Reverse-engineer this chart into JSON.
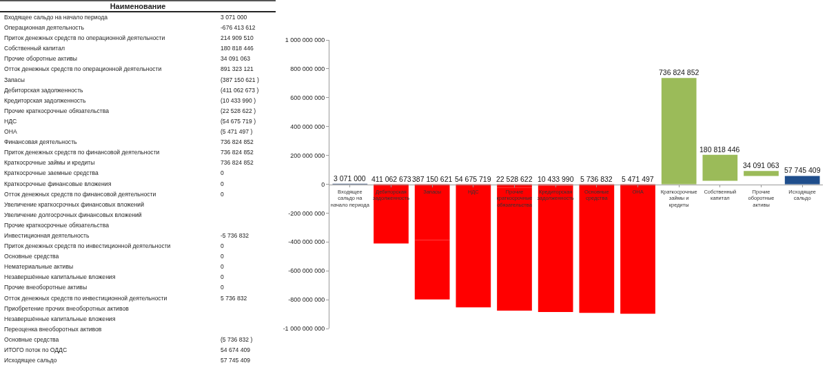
{
  "chart_data": [
    {
      "type": "other",
      "title": "Наименование",
      "categories": [
        "Входящее сальдо на начало периода",
        "Операционная деятельность",
        "Приток денежных средств по операционной деятельности",
        "Собственный капитал",
        "Прочие оборотные активы",
        "Отток денежных средств по операционной деятельности",
        "Запасы",
        "Дебиторская задолженность",
        "Кредиторская задолженность",
        "Прочие краткосрочные обязательства",
        "НДС",
        "ОНА",
        "Финансовая деятельность",
        "Приток денежных средств по финансовой деятельности",
        "Краткосрочные займы и кредиты",
        "Краткосрочные заемные средства",
        "Краткосрочные финансовые вложения",
        "Отток денежных средств по финансовой деятельности",
        "Увеличение краткосрочных финансовых вложений",
        "Увеличение долгосрочных финансовых вложений",
        "Прочие краткосрочные обязательства",
        "Инвестиционная деятельность",
        "Приток денежных средств по инвестиционной деятельности",
        "Основные средства",
        "Нематериальные активы",
        "Незавершённые капитальные вложения",
        "Прочие внеоборотные активы",
        "Отток денежных средств по инвестиционной деятельности",
        "Приобретение прочих внеоборотных активов",
        "Незавершённые капитальные вложения",
        "Переоценка внеоборотных активов",
        "Основные средства",
        "ИТОГО поток по ОДДС",
        "Исходящее сальдо"
      ],
      "value_labels": [
        "3 071 000",
        "-676 413 612",
        "214 909 510",
        "180 818 446",
        "34 091 063",
        "891 323 121",
        "(387 150 621 )",
        "(411 062 673 )",
        "(10 433 990 )",
        "(22 528 622 )",
        "(54 675 719 )",
        "(5 471 497 )",
        "736 824 852",
        "736 824 852",
        "736 824 852",
        "0",
        "0",
        "0",
        null,
        null,
        null,
        "-5 736 832",
        "0",
        "0",
        "0",
        "0",
        "0",
        "5 736 832",
        null,
        null,
        null,
        "(5 736 832 )",
        "54 674 409",
        "57 745 409"
      ]
    },
    {
      "type": "bar",
      "categories": [
        "Входящее сальдо на начало периода",
        "Дебиторская задолженность",
        "Запасы",
        "НДС",
        "Прочие краткосрочные обязательства",
        "Кредиторская задолженность",
        "Основные средства",
        "ОНА",
        "Краткосрочные займы и кредиты",
        "Собственный капитал",
        "Прочие оборотные активы",
        "Исходящее сальдо"
      ],
      "series": [
        {
          "color": "#ff0000",
          "values": [
            null,
            null,
            -411062673,
            -798213294,
            -852889013,
            -875417635,
            -885851625,
            -891588457,
            null,
            null,
            null,
            null
          ],
          "base": [
            null,
            null,
            -387150621,
            -54675719,
            -22528622,
            -10433990,
            -5736832,
            -5471497,
            null,
            null,
            null,
            null
          ]
        },
        {
          "colors": [
            "#1f3864",
            "#ff0000",
            "#ff0000",
            "#ff0000",
            "#ff0000",
            "#ff0000",
            "#ff0000",
            "#ff0000",
            "#9bbb59",
            "#9bbb59",
            "#9bbb59",
            "#1f4e8c"
          ],
          "values": [
            3071000,
            -411062673,
            -387150621,
            -54675719,
            -22528622,
            -10433990,
            -5736832,
            -5471497,
            736824852,
            180818446,
            34091063,
            57745409
          ],
          "base": [
            0,
            0,
            0,
            0,
            0,
            0,
            0,
            0,
            0,
            23654346,
            57745409,
            0
          ],
          "value_labels": [
            "3 071 000",
            "411 062 673",
            "387 150 621",
            "54 675 719",
            "22 528 622",
            "10 433 990",
            "5 736 832",
            "5 471 497",
            "736 824 852",
            "180 818 446",
            "34 091 063",
            "57 745 409"
          ]
        }
      ],
      "ylim": [
        -1000000000,
        1000000000
      ],
      "yticks": [
        {
          "value": 1000000000,
          "label": "1 000 000 000"
        },
        {
          "value": 800000000,
          "label": "800 000 000"
        },
        {
          "value": 600000000,
          "label": "600 000 000"
        },
        {
          "value": 400000000,
          "label": "400 000 000"
        },
        {
          "value": 200000000,
          "label": "200 000 000"
        },
        0,
        {
          "value": -200000000,
          "label": "-200 000 000"
        },
        {
          "value": -400000000,
          "label": "-400 000 000"
        },
        {
          "value": -600000000,
          "label": "-600 000 000"
        },
        {
          "value": -800000000,
          "label": "-800 000 000"
        },
        {
          "value": -1000000000,
          "label": "-1 000 000 000"
        }
      ],
      "grid": false
    }
  ]
}
